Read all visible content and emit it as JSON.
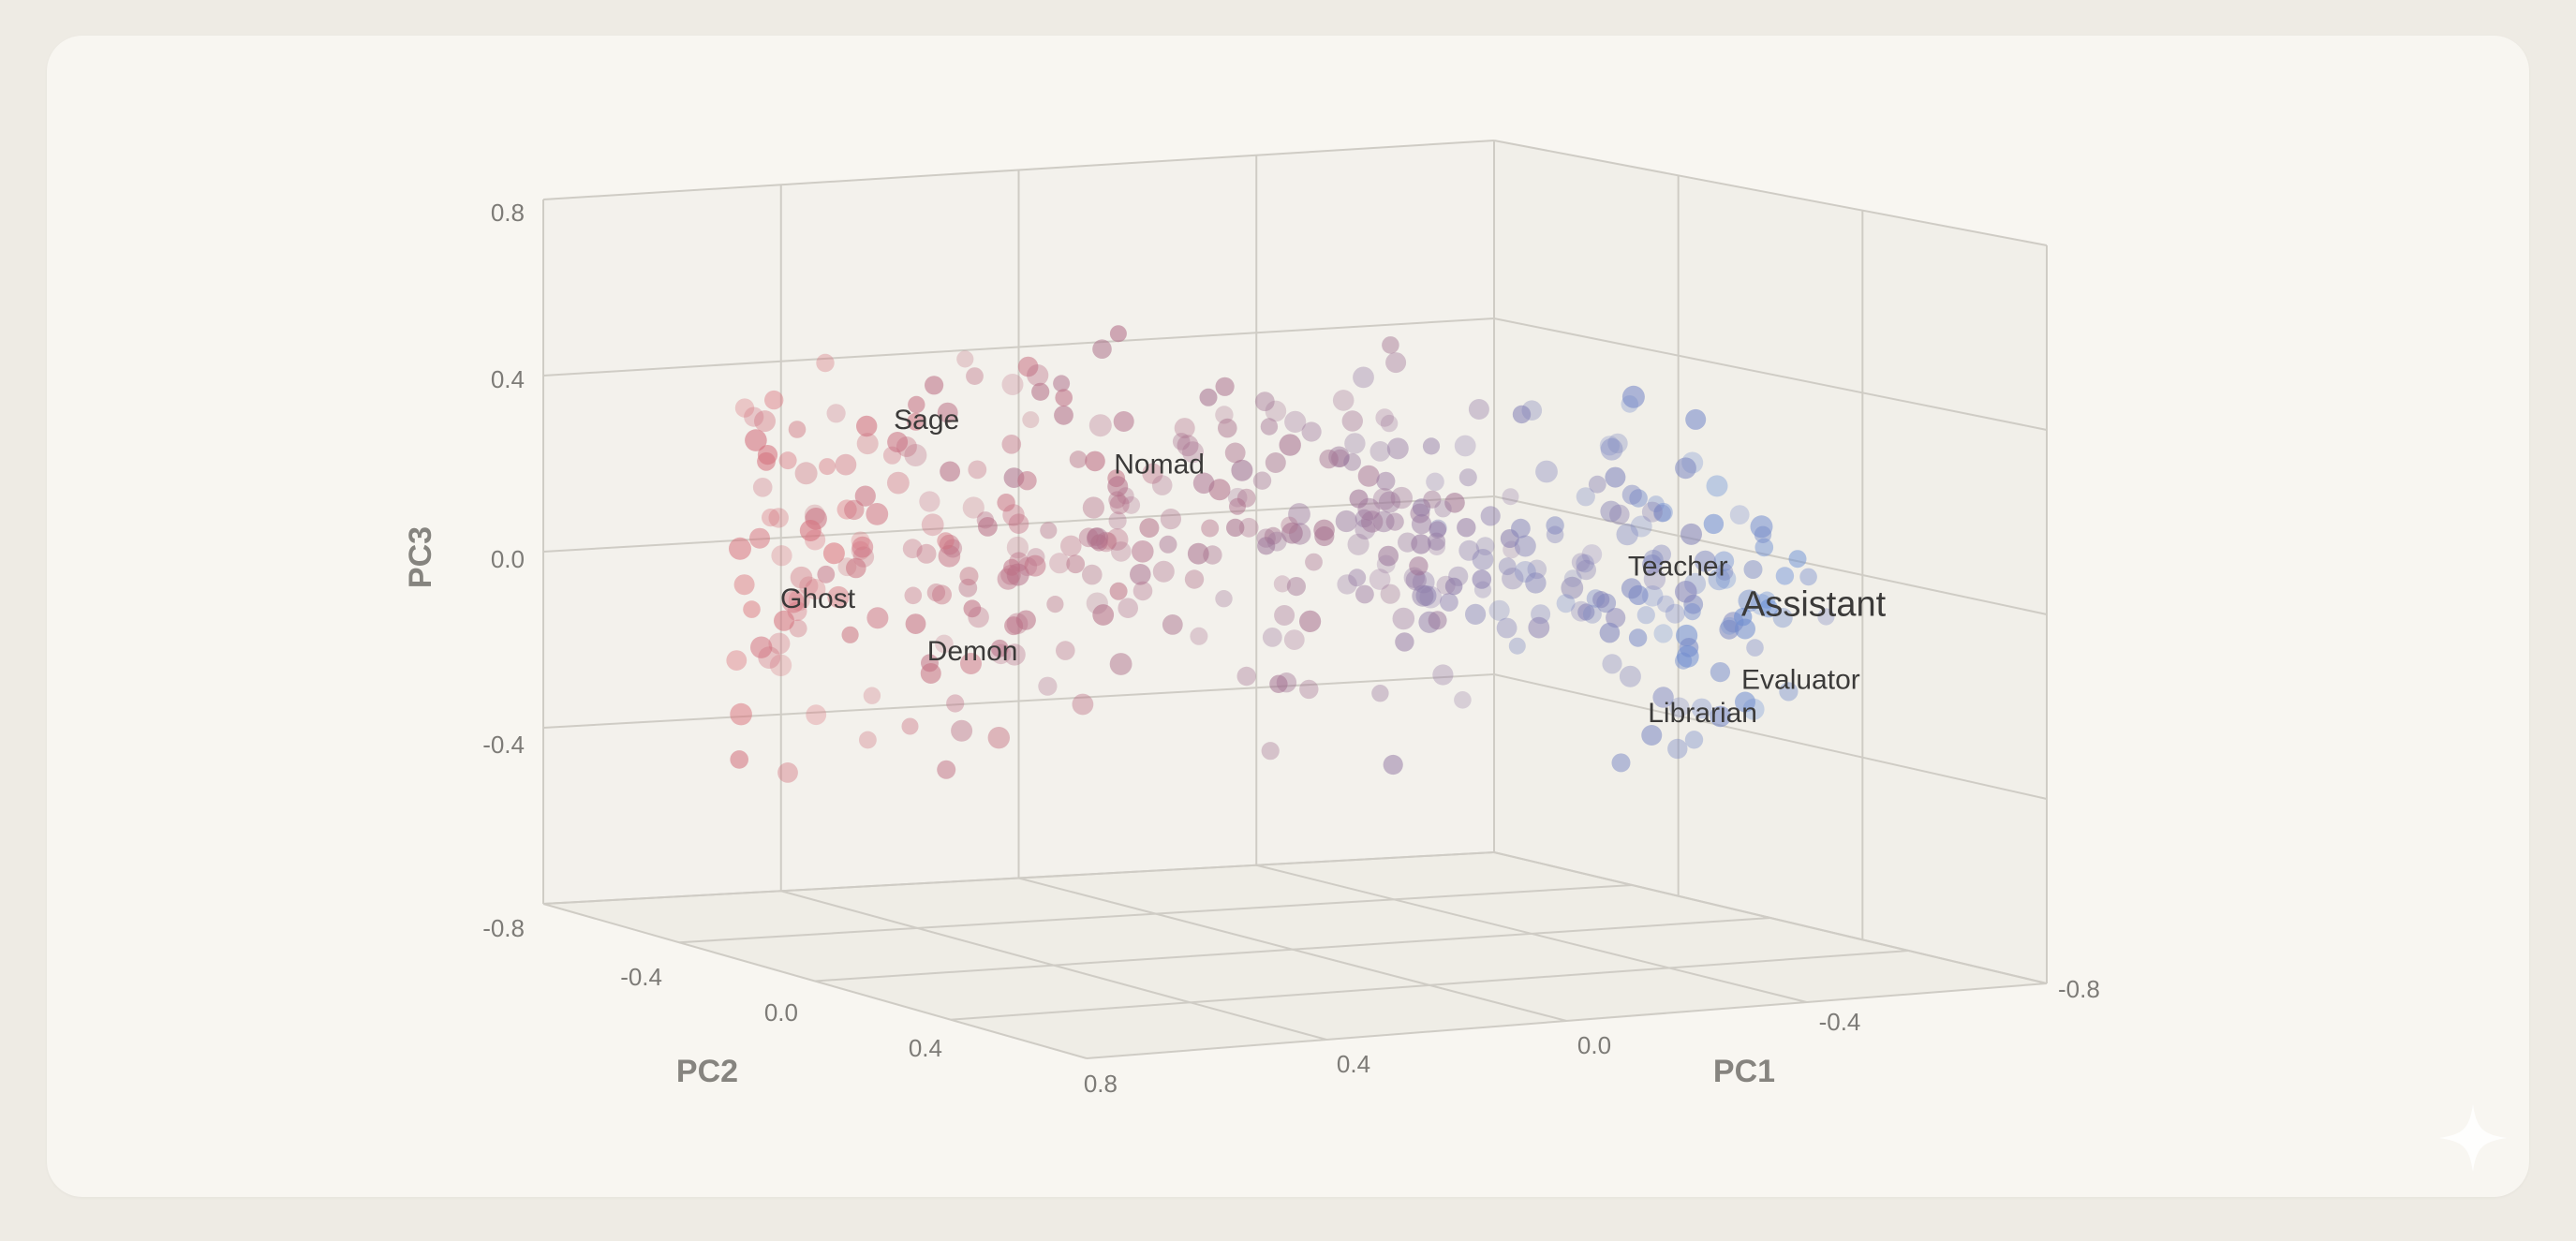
{
  "chart_data": {
    "type": "scatter3d",
    "title": "",
    "axes": {
      "x": {
        "label": "PC1",
        "ticks": [
          "0.4",
          "0.0",
          "-0.4",
          "-0.8"
        ],
        "range": [
          -0.8,
          0.8
        ]
      },
      "y": {
        "label": "PC2",
        "ticks": [
          "-0.4",
          "0.0",
          "0.4",
          "0.8"
        ],
        "range": [
          -0.8,
          0.8
        ]
      },
      "z": {
        "label": "PC3",
        "ticks": [
          "0.8",
          "0.4",
          "0.0",
          "-0.4",
          "-0.8"
        ],
        "range": [
          -0.8,
          0.8
        ]
      }
    },
    "color_gradient": {
      "from": "#d9707a",
      "mid": "#a3708f",
      "to": "#6a8fd6"
    },
    "labeled_points": [
      {
        "name": "Sage",
        "pc1": 0.55,
        "pc3": 0.38
      },
      {
        "name": "Nomad",
        "pc1": 0.22,
        "pc3": 0.28
      },
      {
        "name": "Ghost",
        "pc1": 0.72,
        "pc3": -0.12
      },
      {
        "name": "Demon",
        "pc1": 0.5,
        "pc3": -0.25
      },
      {
        "name": "Teacher",
        "pc1": -0.55,
        "pc3": 0.05
      },
      {
        "name": "Assistant",
        "pc1": -0.72,
        "pc3": -0.05
      },
      {
        "name": "Evaluator",
        "pc1": -0.72,
        "pc3": -0.25
      },
      {
        "name": "Librarian",
        "pc1": -0.58,
        "pc3": -0.35
      }
    ],
    "point_count": 420,
    "cluster_note": "Continuous arc of points from red (high PC1) to blue (low PC1)"
  }
}
